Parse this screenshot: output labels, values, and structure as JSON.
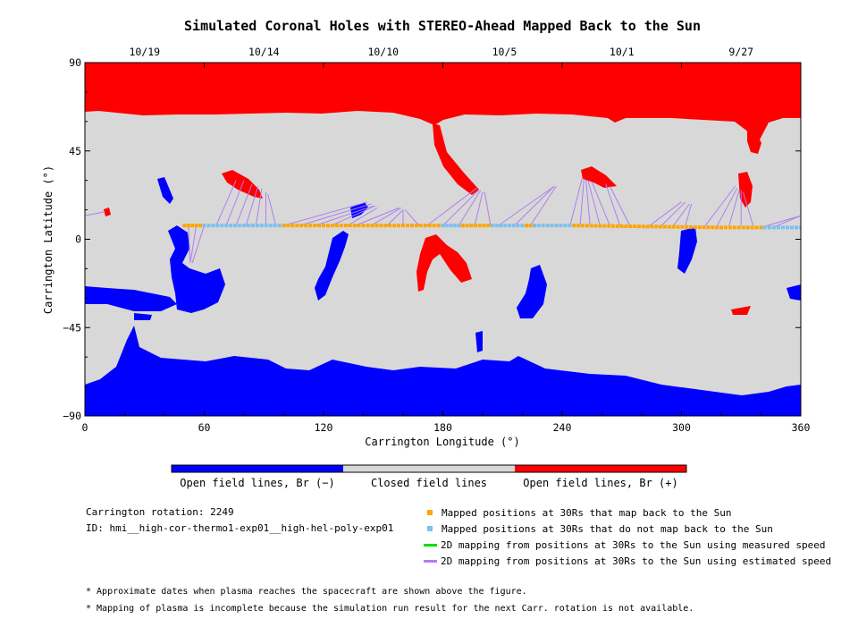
{
  "chart_data": {
    "type": "scatter",
    "title": "Simulated Coronal Holes with STEREO-Ahead Mapped Back to the Sun",
    "xlabel": "Carrington Longitude (°)",
    "ylabel": "Carrington Latitude (°)",
    "xlim": [
      0,
      360
    ],
    "ylim": [
      -90,
      90
    ],
    "x_ticks": [
      "0",
      "60",
      "120",
      "180",
      "240",
      "300",
      "360"
    ],
    "y_ticks": [
      "90",
      "45",
      "0",
      "−45",
      "−90"
    ],
    "top_axis": {
      "dates": [
        "10/19",
        "10/14",
        "10/10",
        "10/5",
        "10/1",
        "9/27"
      ],
      "date_longitudes": [
        30,
        90,
        150,
        211,
        270,
        330
      ]
    },
    "colorbar": [
      {
        "label": "Open field lines, Br (−)",
        "color": "#0000ff"
      },
      {
        "label": "Closed field lines",
        "color": "#d8d8d8"
      },
      {
        "label": "Open field lines, Br (+)",
        "color": "#ff0000"
      }
    ],
    "series": [
      {
        "name": "Mapped positions at 30Rs that map back to the Sun",
        "color": "#ffa500",
        "x": [
          50,
          180,
          320
        ],
        "y": [
          7,
          7,
          6
        ]
      },
      {
        "name": "Mapped positions at 30Rs that do not map back to the Sun",
        "color": "#7ec0ee",
        "x": [
          60,
          205,
          360
        ],
        "y": [
          7,
          7,
          6
        ]
      },
      {
        "name": "2D mapping from positions at 30Rs to the Sun using measured speed",
        "color": "#00dd00",
        "lines": []
      },
      {
        "name": "2D mapping from positions at 30Rs to the Sun using estimated speed",
        "color": "#b07ef0",
        "lines": [
          {
            "from": [
              52,
              7
            ],
            "to": [
              53,
              -12
            ]
          },
          {
            "from": [
              56,
              7
            ],
            "to": [
              53,
              -12
            ]
          },
          {
            "from": [
              60,
              7
            ],
            "to": [
              54,
              -12
            ]
          },
          {
            "from": [
              66,
              7
            ],
            "to": [
              76,
              30
            ]
          },
          {
            "from": [
              71,
              7
            ],
            "to": [
              80,
              30
            ]
          },
          {
            "from": [
              76,
              7
            ],
            "to": [
              84,
              28
            ]
          },
          {
            "from": [
              81,
              7
            ],
            "to": [
              87,
              27
            ]
          },
          {
            "from": [
              86,
              7
            ],
            "to": [
              89,
              26
            ]
          },
          {
            "from": [
              91,
              7
            ],
            "to": [
              91,
              24
            ]
          },
          {
            "from": [
              96,
              7
            ],
            "to": [
              92,
              23
            ]
          },
          {
            "from": [
              100,
              7
            ],
            "to": [
              142,
              19
            ]
          },
          {
            "from": [
              108,
              7
            ],
            "to": [
              144,
              18
            ]
          },
          {
            "from": [
              116,
              7
            ],
            "to": [
              145,
              17
            ]
          },
          {
            "from": [
              124,
              7
            ],
            "to": [
              146,
              17
            ]
          },
          {
            "from": [
              132,
              7
            ],
            "to": [
              147,
              16
            ]
          },
          {
            "from": [
              136,
              7
            ],
            "to": [
              158,
              16
            ]
          },
          {
            "from": [
              144,
              7
            ],
            "to": [
              159,
              16
            ]
          },
          {
            "from": [
              152,
              7
            ],
            "to": [
              160,
              15
            ]
          },
          {
            "from": [
              160,
              7
            ],
            "to": [
              160,
              15
            ]
          },
          {
            "from": [
              168,
              7
            ],
            "to": [
              161,
              15
            ]
          },
          {
            "from": [
              172,
              7
            ],
            "to": [
              197,
              26
            ]
          },
          {
            "from": [
              180,
              7
            ],
            "to": [
              198,
              25
            ]
          },
          {
            "from": [
              188,
              7
            ],
            "to": [
              199,
              25
            ]
          },
          {
            "from": [
              196,
              7
            ],
            "to": [
              200,
              24
            ]
          },
          {
            "from": [
              204,
              7
            ],
            "to": [
              201,
              24
            ]
          },
          {
            "from": [
              208,
              7
            ],
            "to": [
              236,
              27
            ]
          },
          {
            "from": [
              216,
              7
            ],
            "to": [
              236,
              27
            ]
          },
          {
            "from": [
              224,
              7
            ],
            "to": [
              237,
              27
            ]
          },
          {
            "from": [
              244,
              7
            ],
            "to": [
              250,
              31
            ]
          },
          {
            "from": [
              249,
              7
            ],
            "to": [
              251,
              31
            ]
          },
          {
            "from": [
              254,
              7
            ],
            "to": [
              252,
              30
            ]
          },
          {
            "from": [
              259,
              7
            ],
            "to": [
              253,
              30
            ]
          },
          {
            "from": [
              264,
              7
            ],
            "to": [
              255,
              29
            ]
          },
          {
            "from": [
              269,
              7
            ],
            "to": [
              262,
              28
            ]
          },
          {
            "from": [
              274,
              7
            ],
            "to": [
              264,
              27
            ]
          },
          {
            "from": [
              284,
              7
            ],
            "to": [
              300,
              19
            ]
          },
          {
            "from": [
              290,
              7
            ],
            "to": [
              302,
              19
            ]
          },
          {
            "from": [
              296,
              7
            ],
            "to": [
              304,
              18
            ]
          },
          {
            "from": [
              302,
              7
            ],
            "to": [
              305,
              18
            ]
          },
          {
            "from": [
              312,
              7
            ],
            "to": [
              327,
              27
            ]
          },
          {
            "from": [
              318,
              7
            ],
            "to": [
              328,
              26
            ]
          },
          {
            "from": [
              324,
              7
            ],
            "to": [
              329,
              25
            ]
          },
          {
            "from": [
              330,
              7
            ],
            "to": [
              330,
              25
            ]
          },
          {
            "from": [
              336,
              7
            ],
            "to": [
              331,
              24
            ]
          },
          {
            "from": [
              340,
              6
            ],
            "to": [
              360,
              12
            ]
          },
          {
            "from": [
              346,
              6
            ],
            "to": [
              360,
              12
            ]
          },
          {
            "from": [
              0,
              12
            ],
            "to": [
              10,
              14
            ]
          }
        ]
      }
    ]
  },
  "info": {
    "rotation": "Carrington rotation: 2249",
    "run_id": "ID: hmi__high-cor-thermo1-exp01__high-hel-poly-exp01"
  },
  "notes": [
    "* Approximate dates when plasma reaches the spacecraft are shown above the figure.",
    "* Mapping of plasma is incomplete because the simulation run result for the next Carr. rotation is not available."
  ],
  "colors": {
    "closed": "#d8d8d8",
    "negative": "#0000ff",
    "positive": "#ff0000"
  }
}
